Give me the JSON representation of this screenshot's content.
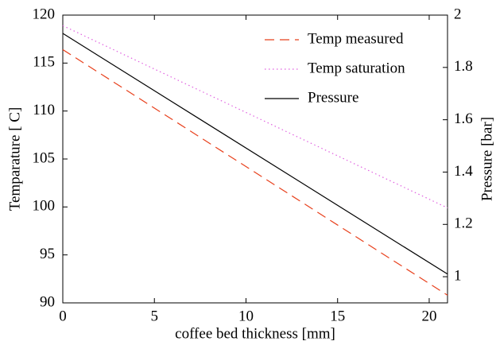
{
  "chart_data": {
    "type": "line",
    "x_label": "coffee bed thickness [mm]",
    "y_label": "Temparature [ C]",
    "y2_label": "Pressure [bar]",
    "x": [
      0,
      21
    ],
    "series": [
      {
        "name": "Temp measured",
        "color": "#e8401c",
        "linestyle": "dashed",
        "values": [
          116.4,
          90.8
        ]
      },
      {
        "name": "Temp saturation",
        "color": "#e060e0",
        "linestyle": "dotted",
        "values": [
          118.9,
          99.9
        ]
      },
      {
        "name": "Pressure",
        "color": "#000000",
        "linestyle": "solid",
        "axis": "y2",
        "values": [
          1.93,
          1.01
        ]
      }
    ],
    "xlim": [
      0,
      21
    ],
    "xticks": [
      0,
      5,
      10,
      15,
      20
    ],
    "ylim": [
      90,
      120
    ],
    "yticks": [
      90,
      95,
      100,
      105,
      110,
      115,
      120
    ],
    "y2lim": [
      0.9,
      2.0
    ],
    "y2ticks": [
      1,
      1.2,
      1.4,
      1.6,
      1.8,
      2
    ],
    "legend": "upper-right",
    "grid": false
  }
}
